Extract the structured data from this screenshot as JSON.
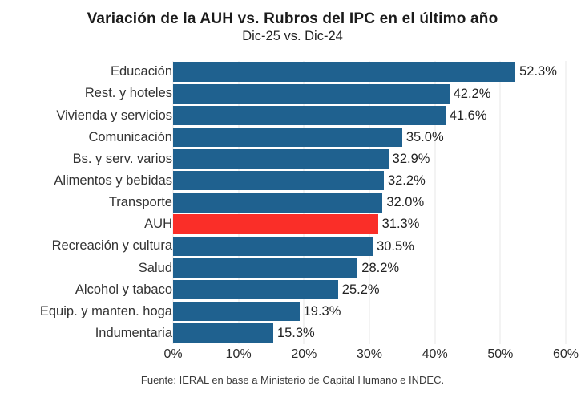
{
  "title": "Variación de la AUH vs. Rubros del IPC en el último año",
  "subtitle": "Dic-25 vs. Dic-24",
  "footer": "Fuente: IERAL en base a Ministerio de Capital Humano e INDEC.",
  "colors": {
    "bar": "#1f618f",
    "highlight": "#fa2e28",
    "grid": "#e7e7e7",
    "background": "#ffffff"
  },
  "chart_data": {
    "type": "bar",
    "orientation": "horizontal",
    "title": "Variación de la AUH vs. Rubros del IPC en el último año",
    "subtitle": "Dic-25 vs. Dic-24",
    "categories": [
      "Educación",
      "Rest. y hoteles",
      "Vivienda y servicios",
      "Comunicación",
      "Bs. y serv. varios",
      "Alimentos y bebidas",
      "Transporte",
      "AUH",
      "Recreación y cultura",
      "Salud",
      "Alcohol y tabaco",
      "Equip. y manten. hoga",
      "Indumentaria"
    ],
    "values": [
      52.3,
      42.2,
      41.6,
      35.0,
      32.9,
      32.2,
      32.0,
      31.3,
      30.5,
      28.2,
      25.2,
      19.3,
      15.3
    ],
    "value_labels": [
      "52.3%",
      "42.2%",
      "41.6%",
      "35.0%",
      "32.9%",
      "32.2%",
      "32.0%",
      "31.3%",
      "30.5%",
      "28.2%",
      "25.2%",
      "19.3%",
      "15.3%"
    ],
    "highlight_index": 7,
    "highlight_category": "AUH",
    "xlim": [
      0,
      60
    ],
    "xticks": [
      "0%",
      "10%",
      "20%",
      "30%",
      "40%",
      "50%",
      "60%"
    ],
    "grid": true,
    "legend": false
  }
}
